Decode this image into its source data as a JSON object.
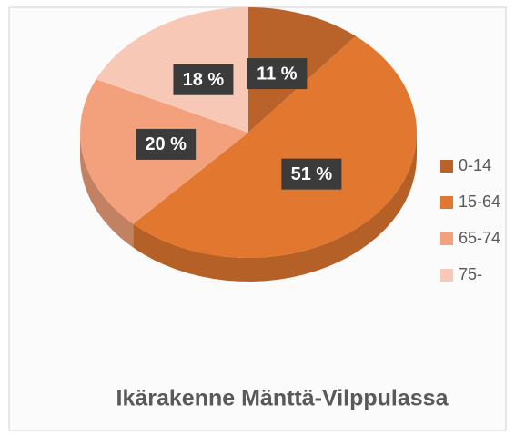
{
  "chart_data": {
    "type": "pie3d",
    "title": "Ikärakenne Mänttä-Vilppulassa",
    "categories": [
      "0-14",
      "15-64",
      "65-74",
      "75-"
    ],
    "values": [
      11,
      51,
      20,
      18
    ],
    "value_labels": [
      "11 %",
      "51 %",
      "20 %",
      "18 %"
    ],
    "colors": [
      "#b9622a",
      "#e2782f",
      "#f2a17c",
      "#f8c8b6"
    ],
    "legend": "right"
  }
}
